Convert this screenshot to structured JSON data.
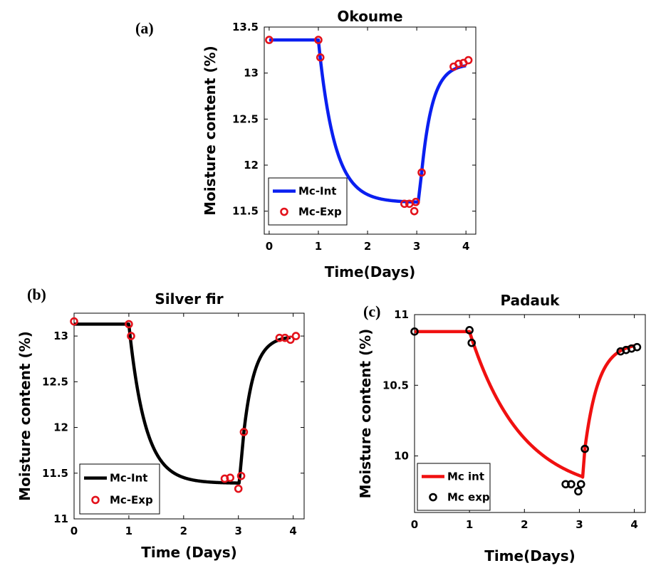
{
  "chart_data": [
    {
      "type": "line",
      "panel_label": "(a)",
      "title": "Okoume",
      "xlabel": "Time(Days)",
      "ylabel": "Moisture content (%)",
      "xlim": [
        -0.1,
        4.2
      ],
      "ylim": [
        11.25,
        13.5
      ],
      "xticks": [
        0,
        1,
        2,
        3,
        4
      ],
      "yticks": [
        11.5,
        12,
        12.5,
        13,
        13.5
      ],
      "ytick_labels": [
        "11.5",
        "12",
        "12.5",
        "13",
        "13.5"
      ],
      "legend_position": "bottom-left",
      "line_color": "#0a1ff0",
      "marker_color": "#e3121b",
      "series": [
        {
          "name": "Mc-Int",
          "kind": "line",
          "model": {
            "v0": 13.36,
            "t1": 1.0,
            "dry_min": 11.595,
            "tau1": 0.33,
            "t2": 3.03,
            "v2": 11.6,
            "t3": 3.1,
            "v3": 11.92,
            "wet_max": 13.1,
            "tau2": 0.22,
            "t_end": 4.0
          }
        },
        {
          "name": "Mc-Exp",
          "kind": "markers",
          "x": [
            0.0,
            1.0,
            1.04,
            2.75,
            2.85,
            2.95,
            2.98,
            3.1,
            3.75,
            3.85,
            3.95,
            4.05
          ],
          "y": [
            13.36,
            13.36,
            13.17,
            11.58,
            11.58,
            11.5,
            11.6,
            11.92,
            13.07,
            13.1,
            13.11,
            13.14
          ]
        }
      ]
    },
    {
      "type": "line",
      "panel_label": "(b)",
      "title": "Silver fir",
      "xlabel": "Time (Days)",
      "ylabel": "Moisture content (%)",
      "xlim": [
        0,
        4.2
      ],
      "ylim": [
        11,
        13.25
      ],
      "xticks": [
        0,
        1,
        2,
        3,
        4
      ],
      "yticks": [
        11,
        11.5,
        12,
        12.5,
        13
      ],
      "ytick_labels": [
        "11",
        "11.5",
        "12",
        "12.5",
        "13"
      ],
      "legend_position": "bottom-left",
      "line_color": "#000000",
      "marker_color": "#e3121b",
      "series": [
        {
          "name": "Mc-Int",
          "kind": "line",
          "model": {
            "v0": 13.13,
            "t1": 1.0,
            "dry_min": 11.39,
            "tau1": 0.3,
            "t2": 3.02,
            "v2": 11.43,
            "t3": 3.1,
            "v3": 11.95,
            "wet_max": 13.0,
            "tau2": 0.2,
            "t_end": 3.95
          }
        },
        {
          "name": "Mc-Exp",
          "kind": "markers",
          "x": [
            0.0,
            1.0,
            1.04,
            2.75,
            2.85,
            3.0,
            3.05,
            3.1,
            3.75,
            3.85,
            3.95,
            4.05
          ],
          "y": [
            13.16,
            13.13,
            13.0,
            11.44,
            11.45,
            11.33,
            11.47,
            11.95,
            12.98,
            12.98,
            12.96,
            13.0
          ]
        }
      ]
    },
    {
      "type": "line",
      "panel_label": "(c)",
      "title": "Padauk",
      "xlabel": "Time(Days)",
      "ylabel": "Moisture content (%)",
      "xlim": [
        0,
        4.2
      ],
      "ylim": [
        9.6,
        11
      ],
      "xticks": [
        0,
        1,
        2,
        3,
        4
      ],
      "yticks": [
        10,
        10.5,
        11
      ],
      "ytick_labels": [
        "10",
        "10.5",
        "11"
      ],
      "legend_position": "bottom-left",
      "line_color": "#f01010",
      "marker_color": "#000000",
      "series": [
        {
          "name": "Mc int",
          "kind": "line",
          "model": {
            "v0": 10.88,
            "t1": 1.0,
            "dry_min": 9.72,
            "tau1": 0.95,
            "t2": 3.05,
            "v2": 9.8,
            "t3": 3.1,
            "v3": 10.05,
            "wet_max": 10.8,
            "tau2": 0.25,
            "t_end": 4.0
          }
        },
        {
          "name": "Mc exp",
          "kind": "markers",
          "x": [
            0.0,
            1.0,
            1.04,
            2.75,
            2.85,
            2.98,
            3.03,
            3.1,
            3.75,
            3.85,
            3.95,
            4.05
          ],
          "y": [
            10.88,
            10.89,
            10.8,
            9.8,
            9.8,
            9.75,
            9.8,
            10.05,
            10.74,
            10.75,
            10.76,
            10.77
          ]
        }
      ]
    }
  ]
}
